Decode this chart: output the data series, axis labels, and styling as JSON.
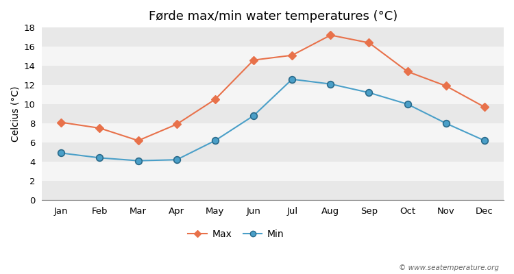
{
  "months": [
    "Jan",
    "Feb",
    "Mar",
    "Apr",
    "May",
    "Jun",
    "Jul",
    "Aug",
    "Sep",
    "Oct",
    "Nov",
    "Dec"
  ],
  "max_temps": [
    8.1,
    7.5,
    6.2,
    7.9,
    10.5,
    14.6,
    15.1,
    17.2,
    16.4,
    13.4,
    11.9,
    9.7
  ],
  "min_temps": [
    4.9,
    4.4,
    4.1,
    4.2,
    6.2,
    8.8,
    12.6,
    12.1,
    11.2,
    10.0,
    8.0,
    6.2
  ],
  "max_color": "#e8714a",
  "min_color": "#4a9fc8",
  "title": "Førde max/min water temperatures (°C)",
  "ylabel": "Celcius (°C)",
  "ylim": [
    0,
    18
  ],
  "yticks": [
    0,
    2,
    4,
    6,
    8,
    10,
    12,
    14,
    16,
    18
  ],
  "band_colors": [
    "#e8e8e8",
    "#f5f5f5"
  ],
  "fig_bg_color": "#ffffff",
  "legend_labels": [
    "Max",
    "Min"
  ],
  "watermark": "© www.seatemperature.org",
  "title_fontsize": 13,
  "axis_label_fontsize": 10,
  "tick_fontsize": 9.5,
  "legend_fontsize": 10,
  "watermark_fontsize": 7.5
}
